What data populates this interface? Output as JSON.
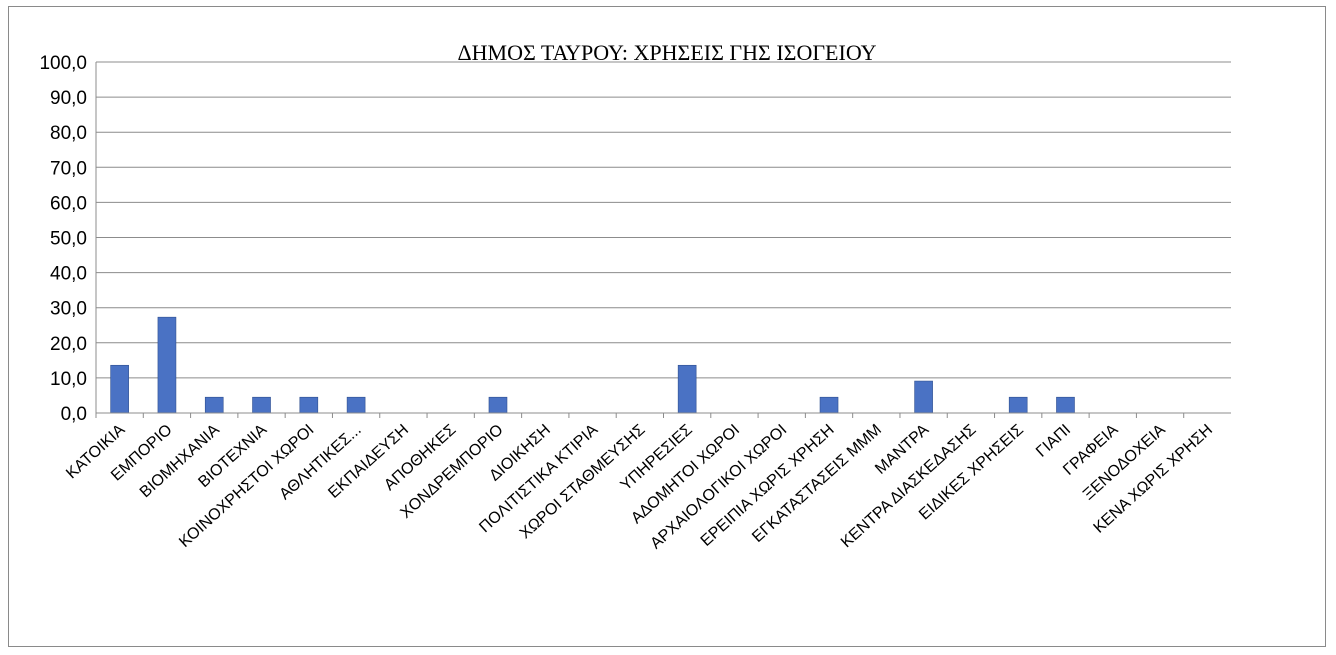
{
  "chart_data": {
    "type": "bar",
    "title": "ΔΗΜΟΣ ΤΑΥΡΟΥ: ΧΡΗΣΕΙΣ ΓΗΣ ΙΣΟΓΕΙΟΥ",
    "xlabel": "",
    "ylabel": "",
    "ylim": [
      0,
      100
    ],
    "yticks": [
      "0,0",
      "10,0",
      "20,0",
      "30,0",
      "40,0",
      "50,0",
      "60,0",
      "70,0",
      "80,0",
      "90,0",
      "100,0"
    ],
    "grid": true,
    "bar_color": "#4a72c4",
    "categories": [
      "ΚΑΤΟΙΚΙΑ",
      "ΕΜΠΟΡΙΟ",
      "ΒΙΟΜΗΧΑΝΙΑ",
      "ΒΙΟΤΕΧΝΙΑ",
      "ΚΟΙΝΟΧΡΗΣΤΟΙ ΧΩΡΟΙ",
      "ΑΘΛΗΤΙΚΕΣ...",
      "ΕΚΠΑΙΔΕΥΣΗ",
      "ΑΠΟΘΗΚΕΣ",
      "ΧΟΝΔΡΕΜΠΟΡΙΟ",
      "ΔΙΟΙΚΗΣΗ",
      "ΠΟΛΙΤΙΣΤΙΚΑ ΚΤΙΡΙΑ",
      "ΧΩΡΟΙ ΣΤΑΘΜΕΥΣΗΣ",
      "ΥΠΗΡΕΣΙΕΣ",
      "ΑΔΟΜΗΤΟΙ ΧΩΡΟΙ",
      "ΑΡΧΑΙΟΛΟΓΙΚΟΙ ΧΩΡΟΙ",
      "ΕΡΕΙΠΙΑ ΧΩΡΙΣ ΧΡΗΣΗ",
      "ΕΓΚΑΤΑΣΤΑΣΕΙΣ ΜΜΜ",
      "ΜΑΝΤΡΑ",
      "ΚΕΝΤΡΑ ΔΙΑΣΚΕΔΑΣΗΣ",
      "ΕΙΔΙΚΕΣ ΧΡΗΣΕΙΣ",
      "ΓΙΑΠΙ",
      "ΓΡΑΦΕΙΑ",
      "ΞΕΝΟΔΟΧΕΙΑ",
      "ΚΕΝΑ ΧΩΡΙΣ ΧΡΗΣΗ"
    ],
    "values": [
      13.6,
      27.3,
      4.5,
      4.5,
      4.5,
      4.5,
      0,
      0,
      4.5,
      0,
      0,
      0,
      13.6,
      0,
      0,
      4.5,
      0,
      9.1,
      0,
      4.5,
      4.5,
      0,
      0,
      0
    ]
  }
}
